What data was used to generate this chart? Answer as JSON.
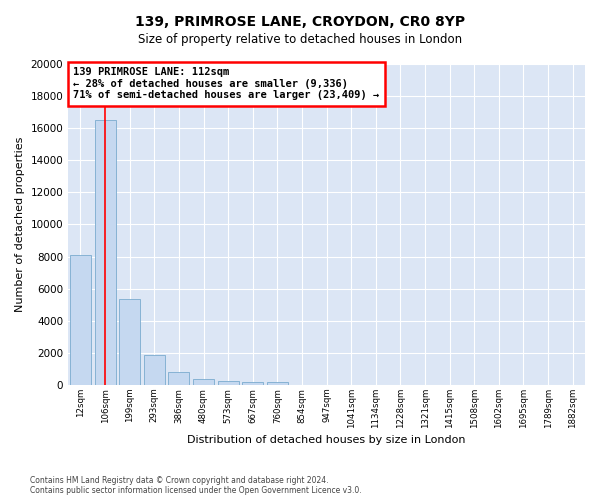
{
  "title1": "139, PRIMROSE LANE, CROYDON, CR0 8YP",
  "title2": "Size of property relative to detached houses in London",
  "xlabel": "Distribution of detached houses by size in London",
  "ylabel": "Number of detached properties",
  "bar_labels": [
    "12sqm",
    "106sqm",
    "199sqm",
    "293sqm",
    "386sqm",
    "480sqm",
    "573sqm",
    "667sqm",
    "760sqm",
    "854sqm",
    "947sqm",
    "1041sqm",
    "1134sqm",
    "1228sqm",
    "1321sqm",
    "1415sqm",
    "1508sqm",
    "1602sqm",
    "1695sqm",
    "1789sqm",
    "1882sqm"
  ],
  "bar_values": [
    8100,
    16500,
    5350,
    1850,
    780,
    340,
    255,
    210,
    210,
    0,
    0,
    0,
    0,
    0,
    0,
    0,
    0,
    0,
    0,
    0,
    0
  ],
  "bar_color": "#c5d8f0",
  "bar_edgecolor": "#7aabcf",
  "annotation_line1": "139 PRIMROSE LANE: 112sqm",
  "annotation_line2": "← 28% of detached houses are smaller (9,336)",
  "annotation_line3": "71% of semi-detached houses are larger (23,409) →",
  "ylim_max": 20000,
  "yticks": [
    0,
    2000,
    4000,
    6000,
    8000,
    10000,
    12000,
    14000,
    16000,
    18000,
    20000
  ],
  "footer1": "Contains HM Land Registry data © Crown copyright and database right 2024.",
  "footer2": "Contains public sector information licensed under the Open Government Licence v3.0.",
  "fig_bg_color": "#ffffff",
  "plot_bg_color": "#dce6f5",
  "grid_color": "#ffffff"
}
